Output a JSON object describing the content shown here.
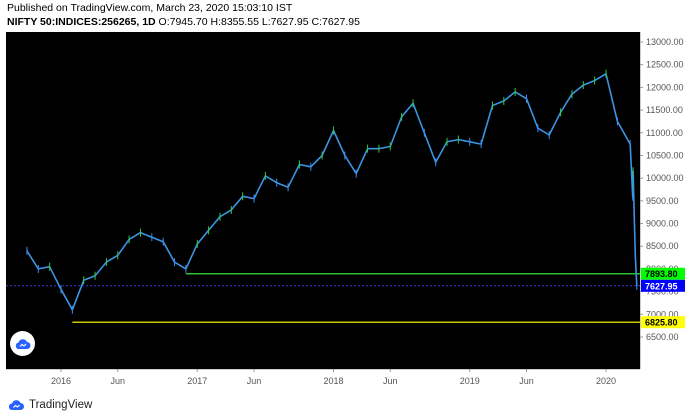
{
  "header": {
    "published": "Published on TradingView.com, March 23, 2020 15:03:10 IST",
    "symbol": "NIFTY 50:INDICES:256265, 1D",
    "ohlc": "O:7945.70 H:8355.55 L:7627.95 C:7627.95"
  },
  "footer": {
    "brand": "TradingView",
    "logo_icon": "tradingview-cloud-icon"
  },
  "chart_data": {
    "type": "line",
    "title": "NIFTY 50:INDICES:256265, 1D",
    "xlabel": "",
    "ylabel": "",
    "x_tick_labels": [
      "2016",
      "Jun",
      "2017",
      "Jun",
      "2018",
      "Jun",
      "2019",
      "Jun",
      "2020"
    ],
    "y_ticks": [
      6500,
      7000,
      7500,
      8000,
      8500,
      9000,
      9500,
      10000,
      10500,
      11000,
      11500,
      12000,
      12500,
      13000
    ],
    "y_tick_labels": [
      "6500.00",
      "7000.00",
      "7500.00",
      "8000.00",
      "8500.00",
      "9000.00",
      "9500.00",
      "10000.00",
      "10500.00",
      "11000.00",
      "11500.00",
      "12000.00",
      "12500.00",
      "13000.00"
    ],
    "ylim": [
      6300,
      13200
    ],
    "series": [
      {
        "x": [
          "2015-10",
          "2015-11",
          "2015-12",
          "2016-01",
          "2016-02",
          "2016-03",
          "2016-04",
          "2016-05",
          "2016-06",
          "2016-07",
          "2016-08",
          "2016-09",
          "2016-10",
          "2016-11",
          "2016-12",
          "2017-01",
          "2017-02",
          "2017-03",
          "2017-04",
          "2017-05",
          "2017-06",
          "2017-07",
          "2017-08",
          "2017-09",
          "2017-10",
          "2017-11",
          "2017-12",
          "2018-01",
          "2018-02",
          "2018-03",
          "2018-04",
          "2018-05",
          "2018-06",
          "2018-07",
          "2018-08",
          "2018-09",
          "2018-10",
          "2018-11",
          "2018-12",
          "2019-01",
          "2019-02",
          "2019-03",
          "2019-04",
          "2019-05",
          "2019-06",
          "2019-07",
          "2019-08",
          "2019-09",
          "2019-10",
          "2019-11",
          "2019-12",
          "2020-01",
          "2020-02",
          "2020-03-05",
          "2020-03-12",
          "2020-03-13",
          "2020-03-16",
          "2020-03-19",
          "2020-03-23"
        ],
        "values": [
          8400,
          8000,
          8050,
          7550,
          7100,
          7750,
          7850,
          8150,
          8300,
          8650,
          8800,
          8700,
          8600,
          8150,
          8000,
          8550,
          8850,
          9150,
          9300,
          9600,
          9550,
          10050,
          9900,
          9800,
          10300,
          10250,
          10500,
          11050,
          10500,
          10100,
          10650,
          10650,
          10700,
          11350,
          11650,
          11000,
          10350,
          10800,
          10850,
          10800,
          10750,
          11600,
          11700,
          11900,
          11750,
          11100,
          10950,
          11450,
          11850,
          12050,
          12150,
          12300,
          11250,
          10750,
          9590,
          10150,
          9200,
          8300,
          7627.95
        ]
      }
    ],
    "horizontal_levels": [
      {
        "label": "7893.80",
        "color": "#00ff00",
        "text_color": "#000000",
        "line_color": "#2fbf2f"
      },
      {
        "label": "7627.95",
        "color": "#0000ff",
        "text_color": "#ffffff",
        "line_color": "#3b3bd6"
      },
      {
        "label": "6825.80",
        "color": "#ffff00",
        "text_color": "#000000",
        "line_color": "#c8c800"
      }
    ],
    "colors": {
      "background": "#000000",
      "series_main": "#3d8df5",
      "series_accent": "#2ecc40"
    }
  }
}
